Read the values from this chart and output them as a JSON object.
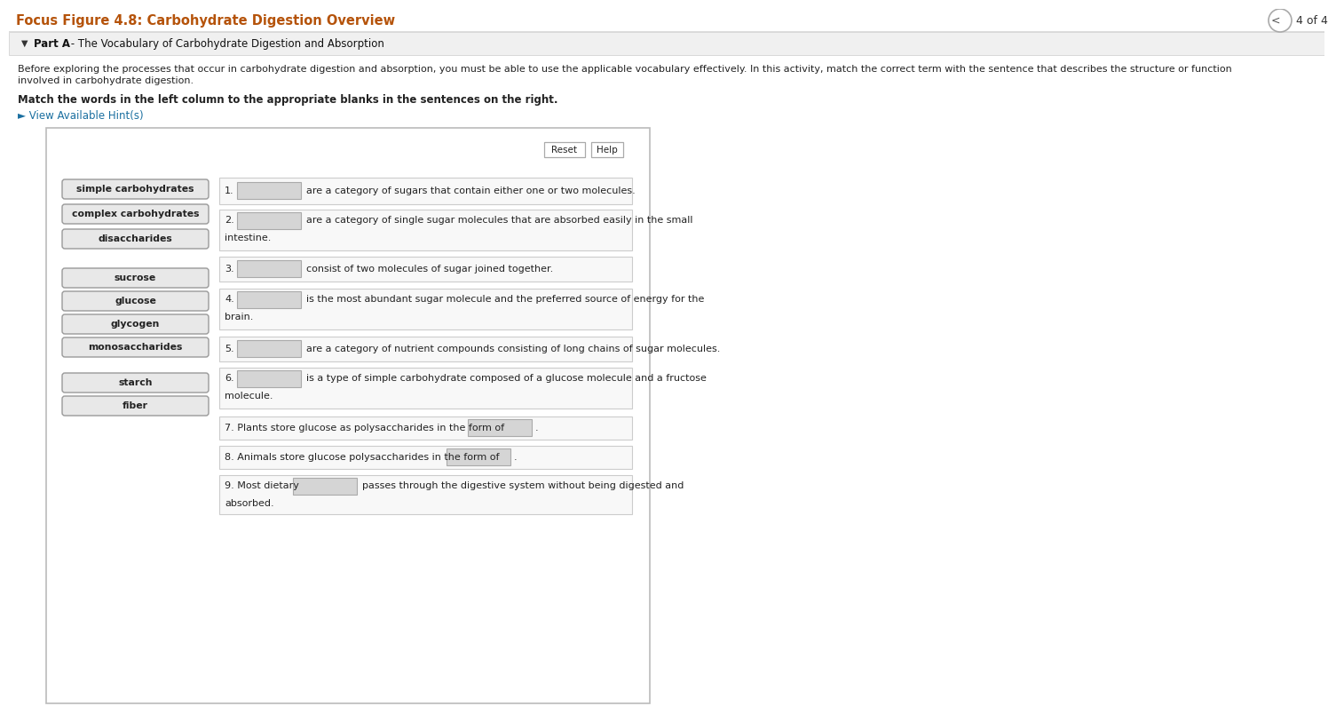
{
  "title": "Focus Figure 4.8: Carbohydrate Digestion Overview",
  "page_indicator": "4 of 4",
  "part_label": "Part A",
  "part_title": " - The Vocabulary of Carbohydrate Digestion and Absorption",
  "desc_line1": "Before exploring the processes that occur in carbohydrate digestion and absorption, you must be able to use the applicable vocabulary effectively. In this activity, match the correct term with the sentence that describes the structure or function",
  "desc_line2": "involved in carbohydrate digestion.",
  "instruction": "Match the words in the left column to the appropriate blanks in the sentences on the right.",
  "hint_link": "► View Available Hint(s)",
  "left_terms": [
    "simple carbohydrates",
    "complex carbohydrates",
    "disaccharides",
    "sucrose",
    "glucose",
    "glycogen",
    "monosaccharides",
    "starch",
    "fiber"
  ],
  "q1_text": "are a category of sugars that contain either one or two molecules.",
  "q2_line1": "are a category of single sugar molecules that are absorbed easily in the small",
  "q2_line2": "intestine.",
  "q3_text": "consist of two molecules of sugar joined together.",
  "q4_line1": "is the most abundant sugar molecule and the preferred source of energy for the",
  "q4_line2": "brain.",
  "q5_text": "are a category of nutrient compounds consisting of long chains of sugar molecules.",
  "q6_line1": "is a type of simple carbohydrate composed of a glucose molecule and a fructose",
  "q6_line2": "molecule.",
  "q7_text": "7. Plants store glucose as polysaccharides in the form of",
  "q8_text": "8. Animals store glucose polysaccharides in the form of",
  "q9_pre": "9. Most dietary",
  "q9_post": "passes through the digestive system without being digested and",
  "q9_line2": "absorbed.",
  "bg_color": "#ffffff",
  "title_color": "#b5530a",
  "part_bg": "#f0f0f0",
  "part_border": "#cccccc",
  "box_bg": "#e8e8e8",
  "box_border": "#999999",
  "answer_bg": "#d5d5d5",
  "answer_border": "#aaaaaa",
  "qrow_bg": "#f8f8f8",
  "qrow_border": "#cccccc",
  "content_bg": "#ffffff",
  "content_border": "#bbbbbb",
  "text_color": "#222222",
  "hint_color": "#1a6fa0",
  "btn_border": "#aaaaaa"
}
